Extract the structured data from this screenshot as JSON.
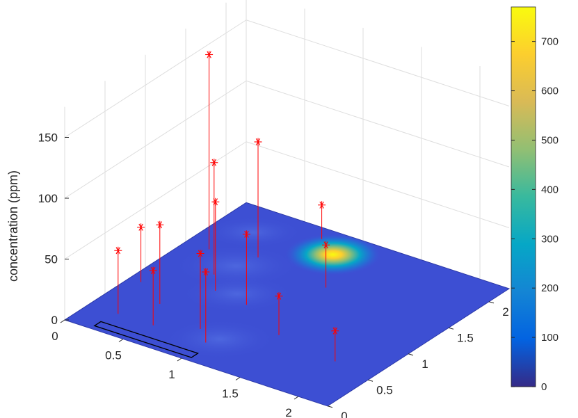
{
  "chart_data": {
    "type": "surface3d-stem",
    "title": "",
    "xlabel": "",
    "ylabel": "",
    "zlabel": "concentration (ppm)",
    "x_ticks": [
      "0",
      "0.5",
      "1",
      "1.5",
      "2"
    ],
    "y_ticks": [
      "0",
      "0.5",
      "1",
      "1.5",
      "2"
    ],
    "z_ticks": [
      "0",
      "50",
      "100",
      "150"
    ],
    "xlim": [
      0,
      2.25
    ],
    "ylim": [
      0,
      2.25
    ],
    "zlim": [
      0,
      175
    ],
    "grid": true,
    "colormap": "parula",
    "colorbar": {
      "ticks": [
        "0",
        "100",
        "200",
        "300",
        "400",
        "500",
        "600",
        "700"
      ],
      "range": [
        0,
        770
      ]
    },
    "surface_peak": {
      "x": 0.95,
      "y": 1.95,
      "value": 770
    },
    "obstacle": {
      "x_range": [
        0.22,
        1.05
      ],
      "y_range": [
        0.05,
        0.13
      ]
    },
    "marker": "*",
    "marker_color": "#ff0000",
    "stems": [
      {
        "x": 0.25,
        "y": 0.3,
        "z": 52
      },
      {
        "x": 0.4,
        "y": 0.6,
        "z": 65
      },
      {
        "x": 0.6,
        "y": 1.0,
        "z": 73
      },
      {
        "x": 0.45,
        "y": 1.2,
        "z": 92
      },
      {
        "x": 0.55,
        "y": 1.6,
        "z": 95
      },
      {
        "x": 0.2,
        "y": 1.5,
        "z": 160
      },
      {
        "x": 0.75,
        "y": 2.1,
        "z": 28
      },
      {
        "x": 0.1,
        "y": 0.8,
        "z": 45
      },
      {
        "x": 0.55,
        "y": 0.3,
        "z": 45
      },
      {
        "x": 0.85,
        "y": 0.45,
        "z": 62
      },
      {
        "x": 0.9,
        "y": 0.95,
        "z": 58
      },
      {
        "x": 1.0,
        "y": 0.3,
        "z": 58
      },
      {
        "x": 1.2,
        "y": 1.5,
        "z": 35
      },
      {
        "x": 1.35,
        "y": 0.7,
        "z": 32
      },
      {
        "x": 1.9,
        "y": 0.6,
        "z": 25
      }
    ]
  }
}
